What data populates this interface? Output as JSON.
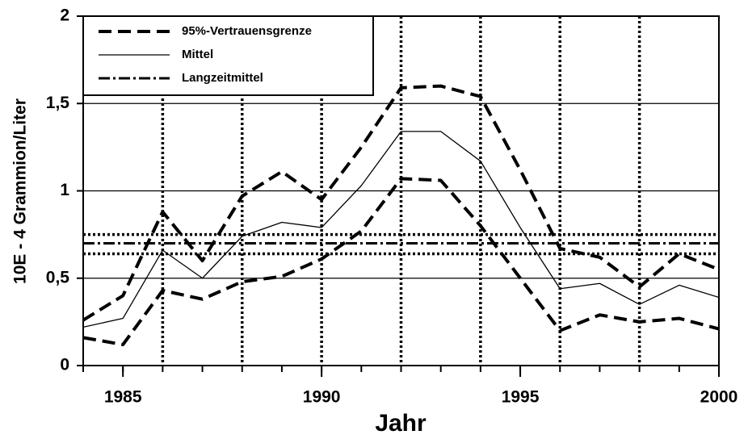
{
  "chart_data": {
    "type": "line",
    "xlabel": "Jahr",
    "ylabel": "10E - 4 Grammion/Liter",
    "x": [
      1984,
      1985,
      1986,
      1987,
      1988,
      1989,
      1990,
      1991,
      1992,
      1993,
      1994,
      1995,
      1996,
      1997,
      1998,
      1999,
      2000
    ],
    "series": [
      {
        "name": "95%-Vertrauensgrenze",
        "color": "#000000",
        "style": "dashed",
        "values": [
          0.26,
          0.4,
          0.88,
          0.6,
          0.97,
          1.11,
          0.95,
          1.25,
          1.59,
          1.6,
          1.54,
          1.12,
          0.67,
          0.62,
          0.45,
          0.64,
          0.55
        ],
        "lower": [
          0.16,
          0.12,
          0.43,
          0.38,
          0.48,
          0.51,
          0.61,
          0.77,
          1.07,
          1.06,
          0.8,
          0.5,
          0.2,
          0.29,
          0.25,
          0.27,
          0.21
        ]
      },
      {
        "name": "Mittel",
        "color": "#000000",
        "style": "solid",
        "values": [
          0.22,
          0.27,
          0.66,
          0.5,
          0.74,
          0.82,
          0.79,
          1.03,
          1.34,
          1.34,
          1.17,
          0.79,
          0.44,
          0.47,
          0.35,
          0.46,
          0.39
        ]
      },
      {
        "name": "Langzeitmittel",
        "color": "#000000",
        "style": "dashdot",
        "value": 0.7,
        "bounds": [
          0.75,
          0.64
        ]
      }
    ],
    "xlim": [
      1984,
      2000
    ],
    "xticks": [
      1985,
      1990,
      1995,
      2000
    ],
    "xgrid": [
      1986,
      1988,
      1990,
      1992,
      1994,
      1996,
      1998
    ],
    "ylim": [
      0,
      2
    ],
    "yticks": [
      0,
      {
        "value": 0.5,
        "label": "0,5"
      },
      1,
      {
        "value": 1.5,
        "label": "1,5"
      },
      2
    ],
    "grid": true,
    "legend": "upper left"
  }
}
